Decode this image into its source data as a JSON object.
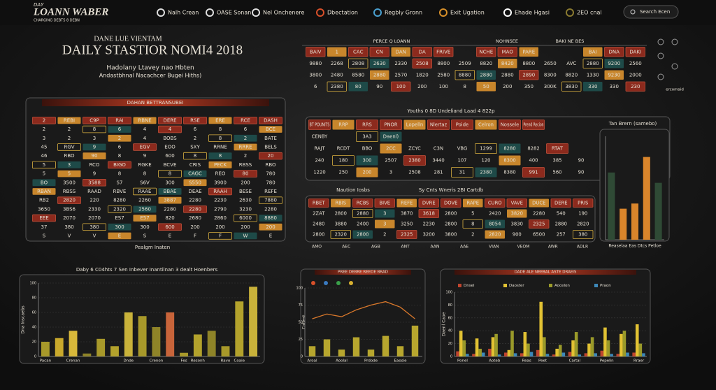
{
  "header": {
    "logo_small": "DAY",
    "logo": "LOANN WABER",
    "tagline": "CHARGING DEBTS 8 DEBN",
    "nav": [
      "Nalh Crean",
      "OASE Sonan",
      "Nel Onchenere",
      "Dbectation",
      "Regbly Gronn",
      "Exit Ugation",
      "Ehade Hgasi",
      "2EO cnal"
    ],
    "search": "Search Ecen"
  },
  "hero": {
    "kicker": "DANE LUE VIENTAM",
    "title": "DAILY STASTIOR NOMI4 2018",
    "subtitle": "Hadolany Ltavey nao Hbten",
    "note": "Andastbhnal Nacachcer Bugei Hiths)"
  },
  "tables": {
    "top": {
      "headers": [
        "PERCE Q LOANN",
        "NOHNSEE",
        "BAKI NE BES"
      ],
      "rows": [
        [
          "BAIV",
          "1",
          "CAC",
          "CN",
          "DAN",
          "DA",
          "FRIVE",
          null,
          "NCHE",
          "MAO",
          "PARE",
          null,
          null,
          "BAI",
          "DNA",
          "DAKI"
        ],
        [
          "9880",
          "2268",
          "2808",
          "2630",
          "2330",
          "2508",
          "8800",
          "2509",
          "8820",
          "8420",
          "8800",
          "2650",
          "AVC",
          "2880",
          "9200",
          "2560"
        ],
        [
          "3800",
          "2480",
          "8580",
          "2880",
          "2570",
          "1820",
          "2580",
          "8880",
          "2880",
          "2880",
          "2890",
          "8300",
          "8820",
          "1330",
          "9230",
          "2000"
        ],
        [
          "6",
          "2380",
          "80",
          "90",
          "100",
          "200",
          "100",
          "8",
          "50",
          "200",
          "350",
          "300K",
          "3830",
          "330",
          "330",
          "230"
        ]
      ],
      "caption": "ercomaid"
    },
    "left": {
      "title": "DAHAN BETTRANSUBEI",
      "footer": "Pealgm Inaten",
      "rows": [
        [
          "2",
          "REBI",
          "C9P",
          "RAI",
          "RBNE",
          "DERE",
          "RSE",
          "ERE",
          "RCE",
          "DASH"
        ],
        [
          "2",
          "2",
          "8",
          "6",
          "4",
          "4",
          "6",
          "8",
          "6",
          "BCE"
        ],
        [
          "3",
          "2",
          "3",
          "2",
          "4",
          "BOBS",
          "2",
          "8",
          "2",
          "BATE"
        ],
        [
          "45",
          "RGV",
          "9",
          "6",
          "EGV",
          "EOO",
          "SXY",
          "RRNE",
          "RRRE",
          "BELS"
        ],
        [
          "46",
          "RBO",
          "90",
          "8",
          "9",
          "600",
          "8",
          "8",
          "2",
          "20"
        ],
        [
          "5",
          "3",
          "RCO",
          "BIGO",
          "RGKE",
          "BCVE",
          "CRIS",
          "PECK",
          "RBSS",
          "RBO"
        ],
        [
          "5",
          "5",
          "9",
          "8",
          "8",
          "8",
          "CAGC",
          "REO",
          "80",
          "780"
        ],
        [
          "BO",
          "3500",
          "3588",
          "S7",
          "S6V",
          "300",
          "S550",
          "3900",
          "200",
          "780"
        ],
        [
          "RBAN",
          "RBSS",
          "RAAD",
          "RBVE",
          "RAAE",
          "BBAE",
          "DEAE",
          "RAAH",
          "BESE",
          "REFE"
        ],
        [
          "RB2",
          "2820",
          "220",
          "8280",
          "2260",
          "3887",
          "2280",
          "2230",
          "2630",
          "7880"
        ],
        [
          "3650",
          "3BS6",
          "2330",
          "2320",
          "2560",
          "2280",
          "2280",
          "2790",
          "3230",
          "2280"
        ],
        [
          "EEE",
          "2070",
          "2070",
          "ES7",
          "E57",
          "820",
          "2680",
          "2860",
          "6000",
          "8880"
        ],
        [
          "37",
          "380",
          "380",
          "300",
          "300",
          "600",
          "200",
          "200",
          "200",
          "200"
        ],
        [
          "S",
          "V",
          "V",
          "E",
          "S",
          "E",
          "F",
          "F",
          "W",
          "E"
        ]
      ]
    },
    "middle": {
      "caption": "Youths 0 8D Undeliand Laad 4 822p",
      "rows": [
        [
          "BT POUNITS",
          "RRP",
          "RRS",
          "PNOR",
          "Lopelln",
          "Nlertaz",
          "Poide",
          "Celron",
          "Nossele",
          "Prend Recion",
          null,
          null
        ],
        [
          "CENBY",
          null,
          "3A3",
          "Daenl)",
          null,
          null,
          null,
          null,
          null,
          null,
          null,
          null
        ],
        [
          "RAJT",
          "RCDT",
          "BBO",
          "2CC",
          "ZCYC",
          "C3N",
          "VBG",
          "1299",
          "8280",
          "8282",
          "RTAT",
          null
        ],
        [
          "240",
          "180",
          "300",
          "2507",
          "2380",
          "3440",
          "107",
          "120",
          "8300",
          "400",
          "385",
          "90"
        ],
        [
          "1220",
          "250",
          "200",
          "3",
          "2508",
          "281",
          "31",
          "2380",
          "8380",
          "991",
          "560",
          "90"
        ]
      ]
    },
    "lower": {
      "captions": [
        "Naution Iosbs",
        "Sy Cnts Wneris 2BI Cartdb"
      ],
      "rows": [
        [
          "RBET",
          "RBIS",
          "RCBS",
          "BIVE",
          "REFE",
          "DVRE",
          "DOVE",
          "RAPE",
          "CURO",
          "VAVE",
          "DUCE",
          "DERE",
          "PRIS"
        ],
        [
          "2ZAT",
          "2800",
          "2880",
          "3",
          "3870",
          "3618",
          "2800",
          "5",
          "2420",
          "3820",
          "2280",
          "540",
          "190"
        ],
        [
          "2480",
          "3880",
          "2400",
          "3",
          "3250",
          "2230",
          "2800",
          "8",
          "8054",
          "3830",
          "2325",
          "2880",
          "2820"
        ],
        [
          "2800",
          "2320",
          "2800",
          "2",
          "2325",
          "3200",
          "3800",
          "2",
          "2820",
          "900",
          "6500",
          "257",
          "380"
        ]
      ],
      "footer": [
        "AMO",
        "AEC",
        "AGB",
        "ANT",
        "AAN",
        "AAE",
        "VIAN",
        "VEOM",
        "AWR",
        "ADLR"
      ]
    }
  },
  "chart_data": [
    {
      "type": "bar",
      "title": "Daby 6 C04hts 7 Sen Inbever Inantilnan 3 dealt Hoenbers",
      "y_label": "Dna Inscaebs",
      "categories": [
        "Pacan",
        null,
        "Crenan",
        null,
        null,
        null,
        "Dnde",
        null,
        "Crenon",
        null,
        "Fes",
        "Resonh",
        null,
        "Ravo",
        "Coaie",
        null
      ],
      "values": [
        20,
        25,
        35,
        4,
        24,
        14,
        60,
        55,
        40,
        60,
        5,
        30,
        35,
        14,
        75,
        95
      ],
      "colors": [
        "#a8992a",
        "#c9a92c",
        "#d8b83a",
        "#8f8428",
        "#a8992a",
        "#b3a22c",
        "#c9b23a",
        "#a8992a",
        "#8f8428",
        "#c8643a",
        "#a8992a",
        "#b3a22c",
        "#8f8428",
        "#a8992a",
        "#b3a22c",
        "#c9b23a"
      ],
      "ylim": [
        0,
        100
      ],
      "yticks": [
        0,
        20,
        40,
        60,
        80,
        100
      ],
      "grid": true
    },
    {
      "type": "combo",
      "title": "PREE DEBRE REEDE BRAD",
      "y_label": "Cobest",
      "legend_colors": [
        "#d8502a",
        "#3a7ac0",
        "#3aa04a",
        "#d8b030"
      ],
      "categories": [
        "Aroal",
        null,
        "Aoolal",
        null,
        "Prdode",
        null,
        "Eaosie",
        null
      ],
      "series": [
        {
          "kind": "bar",
          "color": "#b7a62e",
          "values": [
            15,
            25,
            10,
            28,
            10,
            30,
            15,
            45
          ]
        },
        {
          "kind": "line",
          "color": "#d9782b",
          "values": [
            55,
            62,
            58,
            68,
            75,
            80,
            72,
            55
          ]
        }
      ],
      "ylim": [
        0,
        100
      ],
      "yticks": [
        0,
        25,
        50,
        75,
        100
      ],
      "grid": true
    },
    {
      "type": "bar",
      "title": "DADE ALE NEEBAL ASTE DRAEIS",
      "y_label": "Daenl Caoe",
      "categories": [
        "Ponel",
        null,
        "Aoteb",
        null,
        "Reas",
        "Peet",
        null,
        "Cartal",
        null,
        "Pepelin",
        null,
        "Rraer"
      ],
      "series": [
        {
          "name": "Dnsel",
          "color": "#c0452e",
          "values": [
            8,
            4,
            12,
            6,
            5,
            10,
            3,
            7,
            5,
            9,
            4,
            6
          ]
        },
        {
          "name": "Daoster",
          "color": "#e2c233",
          "values": [
            40,
            28,
            30,
            10,
            38,
            85,
            12,
            25,
            20,
            45,
            35,
            50
          ]
        },
        {
          "name": "Aocelon",
          "color": "#9a9a2a",
          "values": [
            25,
            12,
            35,
            40,
            20,
            30,
            18,
            38,
            30,
            25,
            40,
            20
          ]
        },
        {
          "name": "Praon",
          "color": "#3d88b8",
          "values": [
            4,
            6,
            3,
            5,
            7,
            4,
            6,
            3,
            5,
            4,
            6,
            5
          ]
        }
      ],
      "ylim": [
        0,
        100
      ],
      "yticks": [
        0,
        20,
        40,
        60,
        80,
        100
      ],
      "grid": true
    },
    {
      "type": "bar",
      "title": "Tan Brern (samebo)",
      "x_label": "Reaselaa Eas Dtcs Petloe",
      "values": [
        65,
        30,
        35,
        80,
        55
      ],
      "colors": [
        "#2f4a35",
        "#d9852b",
        "#d9852b",
        "#d9852b",
        "#2f4a35"
      ],
      "ylim": [
        0,
        100
      ],
      "grid": false
    }
  ]
}
